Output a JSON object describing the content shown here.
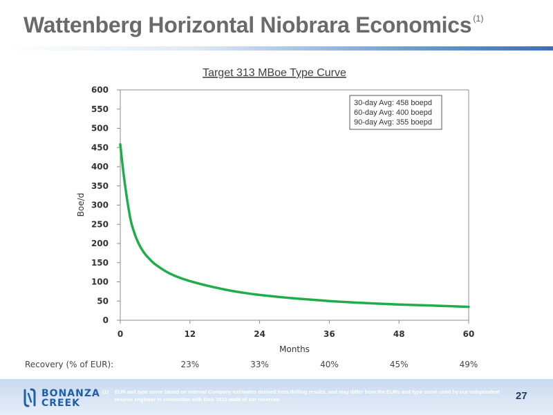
{
  "slide": {
    "title": "Wattenberg Horizontal Niobrara Economics",
    "title_sup": "(1)",
    "page_number": "27"
  },
  "chart_data": {
    "type": "line",
    "title": "Target 313 MBoe Type Curve",
    "xlabel": "Months",
    "ylabel": "Boe/d",
    "xlim": [
      0,
      60
    ],
    "ylim": [
      0,
      600
    ],
    "xticks": [
      0,
      12,
      24,
      36,
      48,
      60
    ],
    "yticks": [
      0,
      50,
      100,
      150,
      200,
      250,
      300,
      350,
      400,
      450,
      500,
      550,
      600
    ],
    "grid": false,
    "line_color": "#1fad4b",
    "series": [
      {
        "x": [
          0,
          0.5,
          1,
          1.5,
          2,
          3,
          4,
          5,
          6,
          8,
          10,
          12,
          15,
          18,
          21,
          24,
          30,
          36,
          42,
          48,
          54,
          60
        ],
        "values": [
          458,
          390,
          333,
          285,
          248,
          205,
          178,
          160,
          146,
          126,
          112,
          102,
          90,
          80,
          72,
          66,
          57,
          50,
          45,
          41,
          38,
          35
        ]
      }
    ],
    "annotation_lines": [
      "30-day Avg: 458 boepd",
      "60-day Avg: 400 boepd",
      "90-day Avg: 355 boepd"
    ],
    "recovery": {
      "label": "Recovery (% of EUR):",
      "values": [
        "23%",
        "33%",
        "40%",
        "45%",
        "49%"
      ]
    }
  },
  "footer": {
    "logo_top": "BONANZA",
    "logo_bottom": "CREEK",
    "footnote_number": "(1)",
    "footnote_text": "EUR and type curve based on internal Company estimates derived from drilling results, and may differ from the EURs and type curve used by our independent reserve engineer in connection with their 2013 audit of our reserves."
  },
  "colors": {
    "brand_blue": "#1f5ea8",
    "title_gray": "#6a6a6a"
  }
}
